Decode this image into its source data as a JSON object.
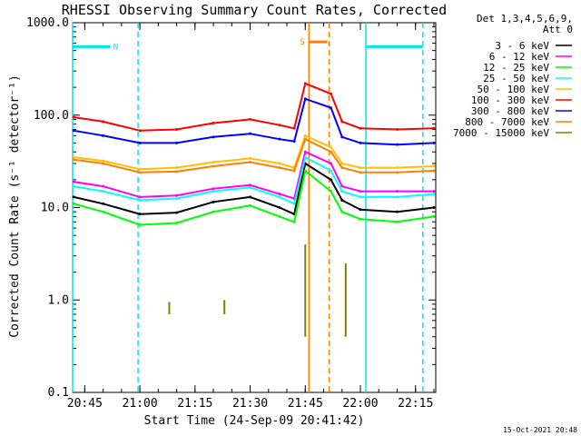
{
  "chart_data": {
    "type": "line",
    "title": "RHESSI Observing Summary Count Rates, Corrected",
    "xlabel": "Start Time (24-Sep-09 20:41:42)",
    "ylabel": "Corrected Count Rate (s⁻¹ detector⁻¹)",
    "y_scale": "log",
    "ylim": [
      0.1,
      1000
    ],
    "y_ticks": [
      "0.1",
      "1.0",
      "10.0",
      "100.0",
      "1000.0"
    ],
    "x_range": [
      "20:41:42",
      "22:20:30"
    ],
    "x_ticks": [
      "20:45",
      "21:00",
      "21:15",
      "21:30",
      "21:45",
      "22:00",
      "22:15"
    ],
    "legend_position": "top-right",
    "legend_header": [
      "Det 1,3,4,5,6,9,",
      "Att 0"
    ],
    "series": [
      {
        "name": "3 - 6 keV",
        "color": "#000000",
        "x": [
          "20:42",
          "20:50",
          "21:00",
          "21:10",
          "21:20",
          "21:30",
          "21:38",
          "21:42",
          "21:45",
          "21:52",
          "21:55",
          "22:00",
          "22:10",
          "22:20"
        ],
        "y": [
          13,
          11,
          8.5,
          8.8,
          11.5,
          13,
          10,
          8.5,
          30,
          20,
          12,
          9.5,
          9,
          10
        ]
      },
      {
        "name": "6 - 12 keV",
        "color": "#ff00ff",
        "x": [
          "20:42",
          "20:50",
          "21:00",
          "21:10",
          "21:20",
          "21:30",
          "21:38",
          "21:42",
          "21:45",
          "21:52",
          "21:55",
          "22:00",
          "22:10",
          "22:20"
        ],
        "y": [
          19,
          17,
          13,
          13.5,
          16,
          17.5,
          14,
          12.5,
          40,
          30,
          17,
          15,
          15,
          15
        ]
      },
      {
        "name": "12 - 25 keV",
        "color": "#00ff00",
        "x": [
          "20:42",
          "20:50",
          "21:00",
          "21:10",
          "21:20",
          "21:30",
          "21:38",
          "21:42",
          "21:45",
          "21:52",
          "21:55",
          "22:00",
          "22:10",
          "22:20"
        ],
        "y": [
          11,
          9,
          6.5,
          6.8,
          9,
          10.5,
          8,
          7,
          25,
          15,
          9,
          7.5,
          7,
          8
        ]
      },
      {
        "name": "25 - 50 keV",
        "color": "#00ffff",
        "x": [
          "20:42",
          "20:50",
          "21:00",
          "21:10",
          "21:20",
          "21:30",
          "21:38",
          "21:42",
          "21:45",
          "21:52",
          "21:55",
          "22:00",
          "22:10",
          "22:20"
        ],
        "y": [
          17,
          15,
          12,
          12.5,
          15,
          16.5,
          13,
          11,
          35,
          25,
          15,
          13,
          13,
          14
        ]
      },
      {
        "name": "50 - 100 keV",
        "color": "#ffbf00",
        "x": [
          "20:42",
          "20:50",
          "21:00",
          "21:10",
          "21:20",
          "21:30",
          "21:38",
          "21:42",
          "21:45",
          "21:52",
          "21:55",
          "22:00",
          "22:10",
          "22:20"
        ],
        "y": [
          35,
          32,
          26,
          27,
          31,
          34,
          30,
          27,
          60,
          45,
          30,
          27,
          27,
          28
        ]
      },
      {
        "name": "100 - 300 keV",
        "color": "#ff0000",
        "x": [
          "20:42",
          "20:50",
          "21:00",
          "21:10",
          "21:20",
          "21:30",
          "21:38",
          "21:42",
          "21:45",
          "21:52",
          "21:55",
          "22:00",
          "22:10",
          "22:20"
        ],
        "y": [
          95,
          85,
          68,
          70,
          82,
          90,
          78,
          72,
          220,
          170,
          85,
          72,
          70,
          72
        ]
      },
      {
        "name": "300 - 800 keV",
        "color": "#0000ff",
        "x": [
          "20:42",
          "20:50",
          "21:00",
          "21:10",
          "21:20",
          "21:30",
          "21:38",
          "21:42",
          "21:45",
          "21:52",
          "21:55",
          "22:00",
          "22:10",
          "22:20"
        ],
        "y": [
          68,
          60,
          50,
          50,
          58,
          63,
          55,
          52,
          150,
          120,
          58,
          50,
          48,
          50
        ]
      },
      {
        "name": "800 - 7000 keV",
        "color": "#ff8000",
        "x": [
          "20:42",
          "20:50",
          "21:00",
          "21:10",
          "21:20",
          "21:30",
          "21:38",
          "21:42",
          "21:45",
          "21:52",
          "21:55",
          "22:00",
          "22:10",
          "22:20"
        ],
        "y": [
          33,
          30,
          24,
          24.5,
          28,
          31,
          27,
          25,
          55,
          40,
          27,
          24,
          24,
          25
        ]
      },
      {
        "name": "7000 - 15000 keV",
        "color": "#808000",
        "x": [
          "21:08",
          "21:08",
          "21:23",
          "21:23",
          "21:45",
          "21:45",
          "21:56",
          "21:56"
        ],
        "y": [
          0.7,
          0.95,
          0.7,
          1.0,
          0.4,
          4.0,
          0.4,
          2.5
        ],
        "segments": true
      }
    ],
    "intervals": [
      {
        "label": "N",
        "color": "#00e5ee",
        "bar_start": "20:41:42",
        "bar_end": "20:52:00",
        "solid": "20:41:42",
        "dashed": "20:59:30",
        "level": 550
      },
      {
        "label": "S",
        "color": "#ff8000",
        "bar_start": "21:46:00",
        "bar_end": "21:51:00",
        "solid": "21:46:00",
        "dashed": "21:51:30",
        "level": 620
      },
      {
        "label": "",
        "color": "#00e5ee",
        "bar_start": "22:01:30",
        "bar_end": "22:17:00",
        "solid": "22:01:30",
        "dashed": "22:17:00",
        "level": 550
      }
    ]
  },
  "footer": {
    "date": "15-Oct-2021 20:48"
  }
}
